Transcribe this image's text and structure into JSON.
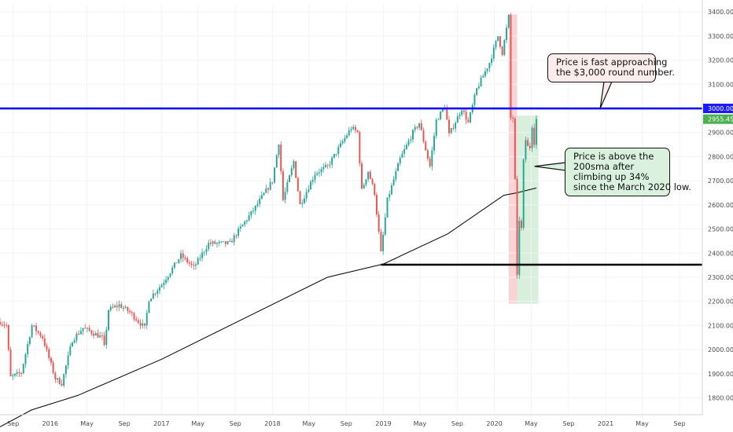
{
  "chart_data": {
    "type": "candlestick",
    "title": "",
    "xlabel": "",
    "ylabel": "",
    "ylim": [
      1730,
      3430
    ],
    "y_ticks": [
      1800,
      1900,
      2000,
      2100,
      2200,
      2300,
      2400,
      2500,
      2600,
      2700,
      2800,
      2900,
      3000,
      3100,
      3200,
      3300,
      3400
    ],
    "y_tick_labels": [
      "1800.00",
      "1900.00",
      "2000.00",
      "2100.00",
      "2200.00",
      "2300.00",
      "2400.00",
      "2500.00",
      "2600.00",
      "2700.00",
      "2800.00",
      "2900.00",
      "3000.00",
      "3100.00",
      "3200.00",
      "3300.00",
      "3400.00"
    ],
    "x_range": [
      "2015-07-20",
      "2021-11-15"
    ],
    "x_ticks": [
      {
        "date": "2015-09-01",
        "label": "Sep"
      },
      {
        "date": "2016-01-01",
        "label": "2016"
      },
      {
        "date": "2016-05-01",
        "label": "May"
      },
      {
        "date": "2016-09-01",
        "label": "Sep"
      },
      {
        "date": "2017-01-01",
        "label": "2017"
      },
      {
        "date": "2017-05-01",
        "label": "May"
      },
      {
        "date": "2017-09-01",
        "label": "Sep"
      },
      {
        "date": "2018-01-01",
        "label": "2018"
      },
      {
        "date": "2018-05-01",
        "label": "May"
      },
      {
        "date": "2018-09-01",
        "label": "Sep"
      },
      {
        "date": "2019-01-01",
        "label": "2019"
      },
      {
        "date": "2019-05-01",
        "label": "May"
      },
      {
        "date": "2019-09-01",
        "label": "Sep"
      },
      {
        "date": "2020-01-01",
        "label": "2020"
      },
      {
        "date": "2020-05-01",
        "label": "May"
      },
      {
        "date": "2020-09-01",
        "label": "Sep"
      },
      {
        "date": "2021-01-01",
        "label": "2021"
      },
      {
        "date": "2021-05-01",
        "label": "May"
      },
      {
        "date": "2021-09-01",
        "label": "Sep"
      }
    ],
    "price_path": [
      [
        "2015-07-20",
        2115
      ],
      [
        "2015-08-10",
        2100
      ],
      [
        "2015-08-24",
        1885
      ],
      [
        "2015-09-28",
        1905
      ],
      [
        "2015-11-02",
        2100
      ],
      [
        "2015-12-07",
        2050
      ],
      [
        "2016-01-18",
        1880
      ],
      [
        "2016-02-08",
        1860
      ],
      [
        "2016-03-14",
        2040
      ],
      [
        "2016-04-18",
        2090
      ],
      [
        "2016-06-20",
        2050
      ],
      [
        "2016-06-27",
        2010
      ],
      [
        "2016-07-11",
        2165
      ],
      [
        "2016-08-15",
        2185
      ],
      [
        "2016-09-19",
        2155
      ],
      [
        "2016-11-07",
        2090
      ],
      [
        "2016-11-21",
        2210
      ],
      [
        "2017-01-02",
        2270
      ],
      [
        "2017-03-06",
        2390
      ],
      [
        "2017-04-17",
        2340
      ],
      [
        "2017-06-05",
        2440
      ],
      [
        "2017-08-14",
        2440
      ],
      [
        "2017-09-04",
        2480
      ],
      [
        "2017-11-06",
        2590
      ],
      [
        "2018-01-01",
        2700
      ],
      [
        "2018-01-22",
        2860
      ],
      [
        "2018-02-05",
        2620
      ],
      [
        "2018-03-12",
        2780
      ],
      [
        "2018-04-02",
        2600
      ],
      [
        "2018-05-21",
        2730
      ],
      [
        "2018-07-02",
        2760
      ],
      [
        "2018-09-17",
        2920
      ],
      [
        "2018-10-08",
        2900
      ],
      [
        "2018-10-22",
        2660
      ],
      [
        "2018-11-12",
        2740
      ],
      [
        "2018-12-03",
        2650
      ],
      [
        "2018-12-24",
        2400
      ],
      [
        "2019-01-14",
        2620
      ],
      [
        "2019-02-25",
        2790
      ],
      [
        "2019-04-08",
        2900
      ],
      [
        "2019-04-29",
        2940
      ],
      [
        "2019-05-20",
        2830
      ],
      [
        "2019-06-03",
        2760
      ],
      [
        "2019-06-24",
        2950
      ],
      [
        "2019-07-22",
        3010
      ],
      [
        "2019-08-05",
        2890
      ],
      [
        "2019-09-16",
        3000
      ],
      [
        "2019-10-07",
        2940
      ],
      [
        "2019-11-04",
        3080
      ],
      [
        "2019-12-16",
        3190
      ],
      [
        "2020-01-13",
        3300
      ],
      [
        "2020-01-27",
        3230
      ],
      [
        "2020-02-17",
        3380
      ],
      [
        "2020-02-24",
        2960
      ],
      [
        "2020-03-02",
        2960
      ],
      [
        "2020-03-09",
        2700
      ],
      [
        "2020-03-16",
        2300
      ],
      [
        "2020-03-23",
        2540
      ],
      [
        "2020-03-30",
        2500
      ],
      [
        "2020-04-06",
        2780
      ],
      [
        "2020-04-13",
        2870
      ],
      [
        "2020-04-20",
        2840
      ],
      [
        "2020-04-27",
        2840
      ],
      [
        "2020-05-04",
        2930
      ],
      [
        "2020-05-11",
        2860
      ],
      [
        "2020-05-18",
        2955
      ]
    ],
    "series": [
      {
        "values": [
          [
            "2015-07-20",
            1680
          ],
          [
            "2015-11-01",
            1750
          ],
          [
            "2016-04-01",
            1810
          ],
          [
            "2017-01-01",
            1960
          ],
          [
            "2017-10-01",
            2130
          ],
          [
            "2018-07-01",
            2300
          ],
          [
            "2019-01-01",
            2355
          ],
          [
            "2019-08-01",
            2480
          ],
          [
            "2020-02-01",
            2640
          ],
          [
            "2020-03-15",
            2650
          ],
          [
            "2020-05-18",
            2670
          ]
        ]
      }
    ],
    "horizontal_lines": [
      {
        "y": 3000,
        "x_from": "2015-07-20",
        "x_to": "2021-11-15",
        "color": "#1010ff"
      },
      {
        "y": 2352,
        "x_from": "2018-12-24",
        "x_to": "2021-11-15",
        "color": "#000000"
      }
    ],
    "highlight_zones": [
      {
        "x_from": "2020-02-17",
        "x_to": "2020-03-16",
        "y_from": 2190,
        "y_to": 3390,
        "color": "#f7c9cc"
      },
      {
        "x_from": "2020-03-16",
        "x_to": "2020-05-25",
        "y_from": 2190,
        "y_to": 2970,
        "color": "#cdebd2"
      }
    ],
    "price_labels": [
      {
        "value": 3000,
        "text": "3000.00",
        "background": "#1a1aff",
        "color": "#ffffff"
      },
      {
        "value": 2955.45,
        "text": "2955.45",
        "background": "#4caf50",
        "color": "#ffffff"
      }
    ],
    "annotations": [
      {
        "id": "round",
        "lines": [
          "Price is fast approaching",
          "the $3,000 round number."
        ],
        "pointer": {
          "date": "2020-12-14",
          "value": 3000
        }
      },
      {
        "id": "sma",
        "lines": [
          "Price is above the",
          "200sma after",
          "climbing up 34%",
          "since the March 2020 low."
        ],
        "pointer": {
          "date": "2020-05-12",
          "value": 2760
        }
      }
    ],
    "colors": {
      "up": "#26a69a",
      "down": "#ef5350",
      "sma": "#000000",
      "grid": "#f0f3fa",
      "axis_text": "#4a4a4a"
    }
  }
}
